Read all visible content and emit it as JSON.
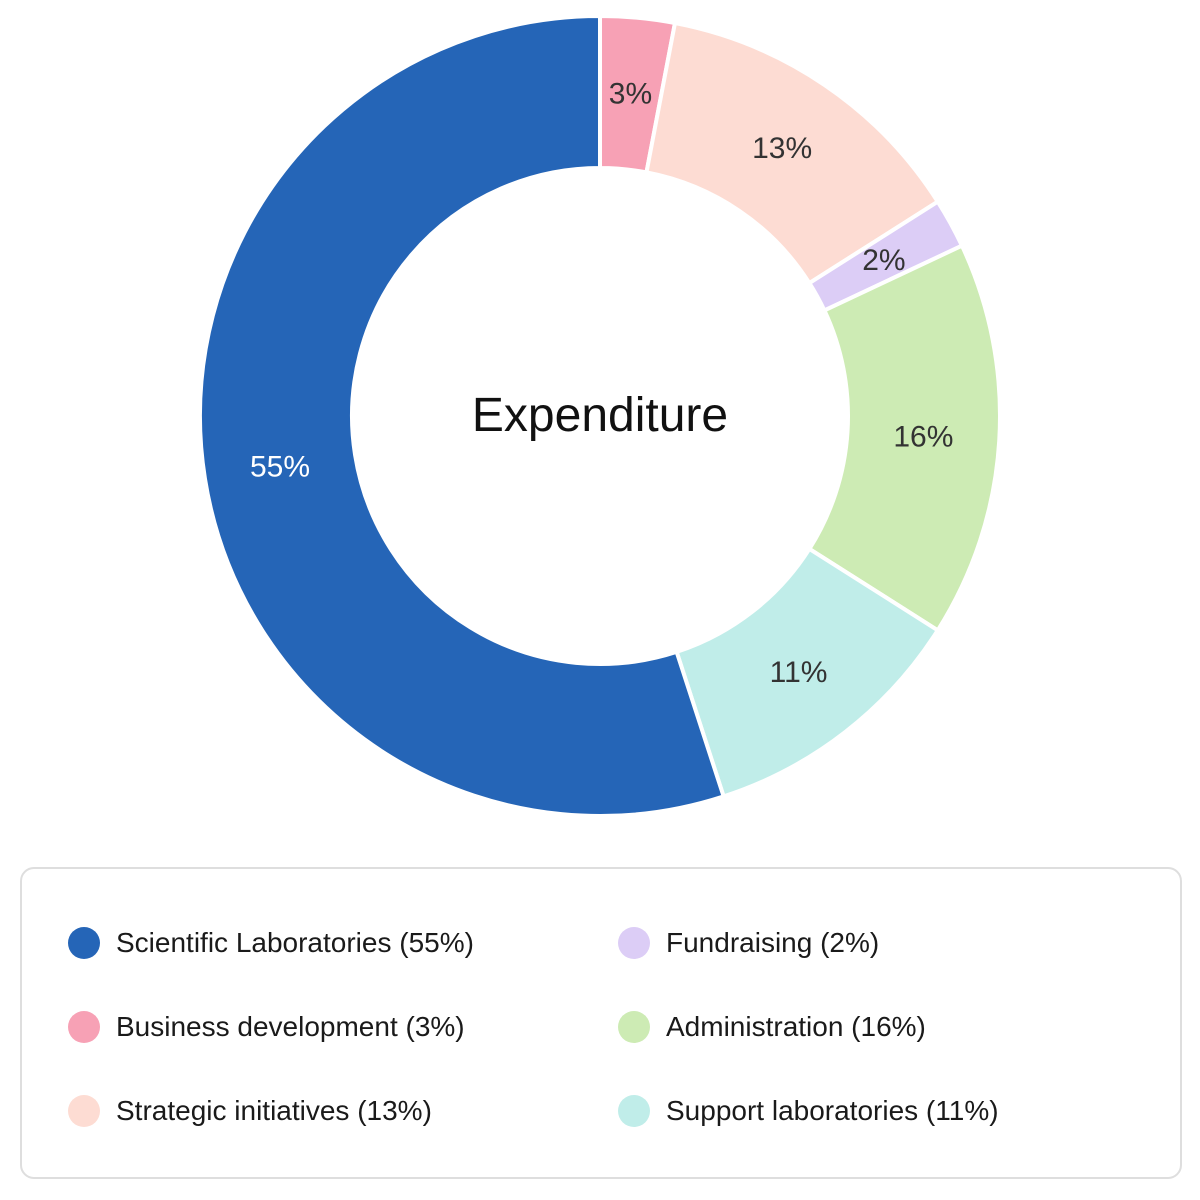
{
  "chart_data": {
    "type": "pie",
    "variant": "donut",
    "title": "Expenditure",
    "categories": [
      "Business development",
      "Strategic initiatives",
      "Fundraising",
      "Administration",
      "Support laboratories",
      "Scientific Laboratories"
    ],
    "values": [
      3,
      13,
      2,
      16,
      11,
      55
    ],
    "unit": "%",
    "colors": [
      "#f7a1b5",
      "#fddcd3",
      "#dccdf6",
      "#cdebb4",
      "#c0ede9",
      "#2565b7"
    ],
    "slice_labels": [
      "3%",
      "13%",
      "2%",
      "16%",
      "11%",
      "55%"
    ],
    "start_angle": "12 o'clock",
    "direction": "clockwise",
    "legend_position": "bottom"
  },
  "center": {
    "title": "Expenditure"
  },
  "legend": {
    "items": [
      {
        "label": "Scientific Laboratories (55%)",
        "color": "#2565b7"
      },
      {
        "label": "Business development (3%)",
        "color": "#f7a1b5"
      },
      {
        "label": "Strategic initiatives (13%)",
        "color": "#fddcd3"
      },
      {
        "label": "Fundraising (2%)",
        "color": "#dccdf6"
      },
      {
        "label": "Administration (16%)",
        "color": "#cdebb4"
      },
      {
        "label": "Support laboratories (11%)",
        "color": "#c0ede9"
      }
    ]
  }
}
